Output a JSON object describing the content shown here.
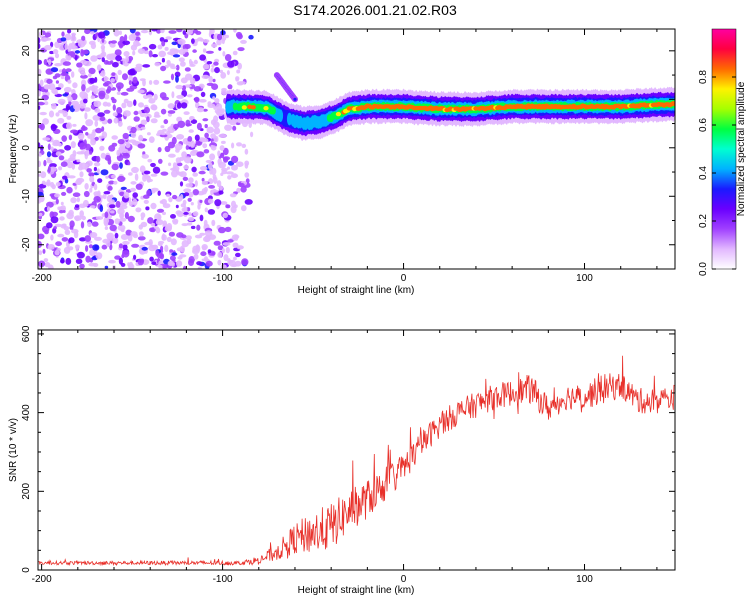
{
  "title": "S174.2026.001.21.02.R03",
  "chart_data": [
    {
      "type": "heatmap",
      "name": "spectrogram",
      "xlabel": "Height of straight line (km)",
      "ylabel": "Frequency (Hz)",
      "xlim": [
        -202,
        150
      ],
      "ylim": [
        -25,
        24.5
      ],
      "x_ticks": [
        -200,
        -100,
        0,
        100
      ],
      "y_ticks": [
        -20,
        -10,
        0,
        10,
        20
      ],
      "colorbar": {
        "label": "Normalized spectral amplitude",
        "range": [
          0,
          1
        ],
        "ticks": [
          0.0,
          0.2,
          0.4,
          0.6,
          0.8
        ],
        "colors": [
          "#ffffff",
          "#e2b8ff",
          "#a040ff",
          "#6a00ff",
          "#1a1aff",
          "#00b3ff",
          "#00ffd0",
          "#00ff40",
          "#a6ff00",
          "#fff200",
          "#ff6a00",
          "#ff0040",
          "#ff00a0"
        ]
      },
      "noise_region_x": [
        -202,
        -80
      ],
      "tone_track": [
        {
          "x": -95,
          "freq": 8.5,
          "amp": 0.45
        },
        {
          "x": -85,
          "freq": 8.5,
          "amp": 0.7
        },
        {
          "x": -75,
          "freq": 8.2,
          "amp": 0.6
        },
        {
          "x": -65,
          "freq": 6.0,
          "amp": 0.35
        },
        {
          "x": -55,
          "freq": 5.0,
          "amp": 0.4
        },
        {
          "x": -45,
          "freq": 5.5,
          "amp": 0.45
        },
        {
          "x": -38,
          "freq": 6.5,
          "amp": 0.6
        },
        {
          "x": -30,
          "freq": 8.0,
          "amp": 0.75
        },
        {
          "x": -20,
          "freq": 8.5,
          "amp": 0.85
        },
        {
          "x": -10,
          "freq": 8.5,
          "amp": 0.9
        },
        {
          "x": 0,
          "freq": 8.5,
          "amp": 0.9
        },
        {
          "x": 20,
          "freq": 8.0,
          "amp": 0.85
        },
        {
          "x": 40,
          "freq": 8.0,
          "amp": 0.8
        },
        {
          "x": 60,
          "freq": 8.5,
          "amp": 0.9
        },
        {
          "x": 80,
          "freq": 8.5,
          "amp": 0.95
        },
        {
          "x": 100,
          "freq": 8.5,
          "amp": 0.95
        },
        {
          "x": 120,
          "freq": 8.5,
          "amp": 0.85
        },
        {
          "x": 135,
          "freq": 8.8,
          "amp": 0.8
        },
        {
          "x": 150,
          "freq": 9.0,
          "amp": 0.95
        }
      ],
      "side_feature": [
        {
          "x": -70,
          "freq": 15.0
        },
        {
          "x": -60,
          "freq": 10.0
        }
      ]
    },
    {
      "type": "line",
      "name": "snr",
      "xlabel": "Height of straight line (km)",
      "ylabel": "SNR (10 * v/v)",
      "xlim": [
        -202,
        150
      ],
      "ylim": [
        0,
        610
      ],
      "x_ticks": [
        -200,
        -100,
        0,
        100
      ],
      "y_ticks": [
        0,
        200,
        400,
        600
      ],
      "color": "#e8302a",
      "envelope": {
        "x": [
          -202,
          -90,
          -80,
          -70,
          -60,
          -50,
          -40,
          -30,
          -20,
          -10,
          0,
          10,
          20,
          30,
          40,
          50,
          60,
          70,
          80,
          90,
          100,
          110,
          120,
          130,
          140,
          150
        ],
        "mean": [
          18,
          18,
          25,
          45,
          80,
          95,
          110,
          150,
          180,
          220,
          260,
          320,
          370,
          400,
          420,
          440,
          450,
          460,
          410,
          440,
          440,
          460,
          470,
          430,
          430,
          440
        ],
        "spread": [
          8,
          10,
          20,
          40,
          70,
          100,
          110,
          100,
          90,
          80,
          70,
          60,
          60,
          60,
          60,
          60,
          60,
          70,
          60,
          60,
          60,
          70,
          60,
          60,
          60,
          60
        ]
      }
    }
  ]
}
